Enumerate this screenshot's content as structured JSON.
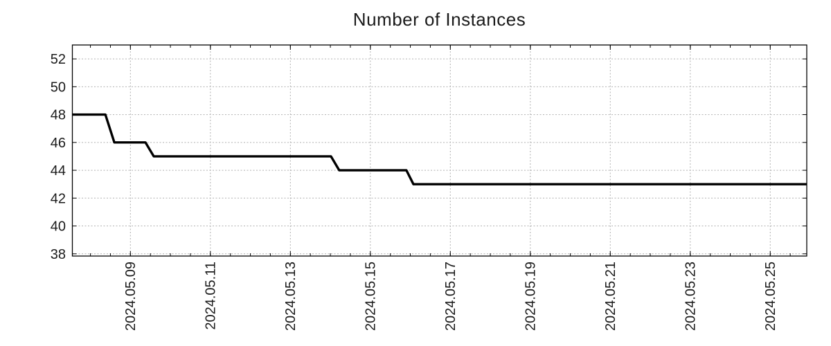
{
  "chart_data": {
    "type": "line",
    "style": "step-monitoring-line",
    "title": "Number of Instances",
    "legend": false,
    "grid": "dotted",
    "x_type": "datetime",
    "x_range": [
      "2024-05-07T13:10:00",
      "2024-05-25T21:55:00"
    ],
    "y_range": [
      37.84,
      53.0
    ],
    "x_tick_labels": [
      "2024.05.09",
      "2024.05.11",
      "2024.05.13",
      "2024.05.15",
      "2024.05.17",
      "2024.05.19",
      "2024.05.21",
      "2024.05.23",
      "2024.05.25"
    ],
    "x_major_tick_days": 2,
    "x_minor_tick_hours": 12,
    "y_ticks": [
      38,
      40,
      42,
      44,
      46,
      48,
      50,
      52
    ],
    "series": [
      {
        "name": "instances",
        "color": "#000000",
        "points": [
          [
            "2024-05-07T13:10:00",
            48
          ],
          [
            "2024-05-08T09:00:00",
            48
          ],
          [
            "2024-05-08T14:20:00",
            46
          ],
          [
            "2024-05-09T09:00:00",
            46
          ],
          [
            "2024-05-09T14:00:00",
            45
          ],
          [
            "2024-05-14T00:20:00",
            45
          ],
          [
            "2024-05-14T05:20:00",
            44
          ],
          [
            "2024-05-15T21:40:00",
            44
          ],
          [
            "2024-05-16T01:50:00",
            43
          ],
          [
            "2024-05-25T21:55:00",
            43
          ]
        ]
      }
    ],
    "colors": {
      "line": "#000000",
      "grid": "#b0b0b0",
      "axis": "#000000",
      "text": "#1a1a1a",
      "background": "#ffffff"
    }
  }
}
